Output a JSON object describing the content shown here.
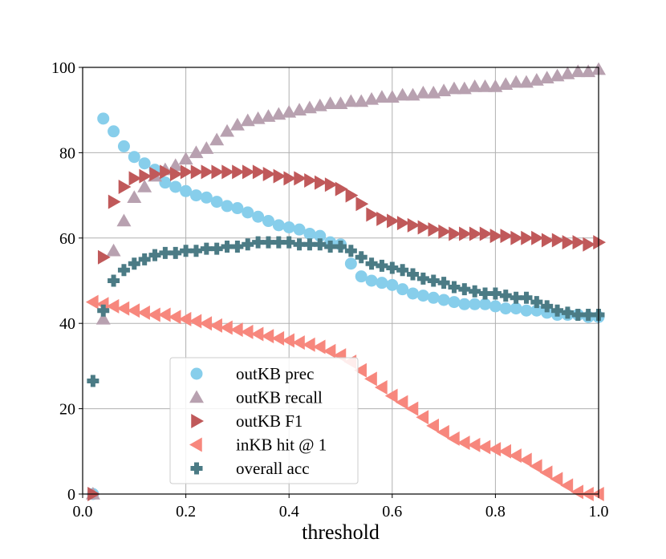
{
  "chart_data": {
    "type": "scatter",
    "title": "",
    "xlabel": "threshold",
    "ylabel": "",
    "xlim": [
      0.0,
      1.0
    ],
    "ylim": [
      0,
      100
    ],
    "xticks": [
      0.0,
      0.2,
      0.4,
      0.6,
      0.8,
      1.0
    ],
    "yticks": [
      0,
      20,
      40,
      60,
      80,
      100
    ],
    "xtick_labels": [
      "0.0",
      "0.2",
      "0.4",
      "0.6",
      "0.8",
      "1.0"
    ],
    "ytick_labels": [
      "0",
      "20",
      "40",
      "60",
      "80",
      "100"
    ],
    "grid": true,
    "legend_position": "lower-center-left",
    "x": [
      0.02,
      0.04,
      0.06,
      0.08,
      0.1,
      0.12,
      0.14,
      0.16,
      0.18,
      0.2,
      0.22,
      0.24,
      0.26,
      0.28,
      0.3,
      0.32,
      0.34,
      0.36,
      0.38,
      0.4,
      0.42,
      0.44,
      0.46,
      0.48,
      0.5,
      0.52,
      0.54,
      0.56,
      0.58,
      0.6,
      0.62,
      0.64,
      0.66,
      0.68,
      0.7,
      0.72,
      0.74,
      0.76,
      0.78,
      0.8,
      0.82,
      0.84,
      0.86,
      0.88,
      0.9,
      0.92,
      0.94,
      0.96,
      0.98,
      1.0
    ],
    "series": [
      {
        "name": "outKB prec",
        "marker": "circle",
        "color": "#87ceeb",
        "values": [
          0,
          88,
          85,
          81.5,
          79,
          77.5,
          76,
          73,
          72,
          71,
          70,
          69.5,
          68.5,
          67.5,
          67,
          66,
          65,
          64,
          63,
          62.5,
          62,
          61,
          60.5,
          59,
          58.5,
          54,
          51,
          50,
          49.5,
          49,
          48,
          47,
          46.5,
          46,
          45.5,
          45,
          44.5,
          44.5,
          44.5,
          44,
          43.5,
          43.5,
          43,
          43,
          42.5,
          42,
          42,
          42,
          41.5,
          41.5
        ]
      },
      {
        "name": "outKB recall",
        "marker": "triangle-up",
        "color": "#b8a1b0",
        "values": [
          0,
          41,
          57,
          64,
          69.5,
          72,
          74.5,
          76,
          77,
          78.5,
          80,
          81,
          83,
          85,
          86.5,
          87.5,
          88,
          88.5,
          89,
          89.5,
          90,
          90.5,
          91,
          91.5,
          91.5,
          92,
          92,
          92.5,
          93,
          93,
          93.5,
          93.5,
          94,
          94,
          94.5,
          95,
          95,
          95.5,
          95.5,
          95.5,
          96,
          96.5,
          96.5,
          97,
          97.5,
          98,
          98.5,
          99,
          99,
          99.5
        ]
      },
      {
        "name": "outKB F1",
        "marker": "triangle-right",
        "color": "#c0595a",
        "values": [
          0,
          55.5,
          68.5,
          72,
          74,
          74.5,
          75,
          75.5,
          75,
          75.5,
          75.5,
          75.5,
          75.5,
          75.5,
          75.5,
          75.5,
          75.5,
          75,
          74.5,
          74,
          74,
          73.5,
          73,
          72.5,
          71.5,
          70,
          68,
          65.5,
          64.5,
          64,
          63.5,
          63,
          62.5,
          62,
          61.5,
          61,
          61,
          61,
          61,
          60.5,
          60.5,
          60,
          60,
          60,
          59.5,
          59.5,
          59,
          59,
          58.5,
          59
        ]
      },
      {
        "name": "inKB hit @ 1",
        "marker": "triangle-left",
        "color": "#f7877d",
        "values": [
          45,
          44.5,
          44,
          43.5,
          43,
          42.5,
          42,
          42,
          41.5,
          41,
          40.5,
          40,
          39.5,
          39,
          38.5,
          38,
          37.5,
          37,
          36.5,
          36,
          35.5,
          35,
          34.5,
          33.5,
          32.5,
          31,
          29,
          27,
          25,
          23,
          21.5,
          20,
          18,
          16,
          14.5,
          13,
          12,
          11.5,
          11,
          10.5,
          10,
          9,
          8,
          6.5,
          5,
          3.5,
          2,
          0.5,
          0,
          0
        ]
      },
      {
        "name": "overall acc",
        "marker": "plus",
        "color": "#4b7b85",
        "values": [
          26.5,
          43,
          50,
          52.5,
          54,
          55,
          56,
          56.5,
          56.5,
          57,
          57,
          57.5,
          57.5,
          58,
          58,
          58.5,
          59,
          59,
          59,
          59,
          58.5,
          58.5,
          58.5,
          58,
          58,
          57,
          55.5,
          54,
          53.5,
          53,
          52.5,
          51.5,
          50.5,
          50,
          49.5,
          48.5,
          48,
          47.5,
          47,
          47,
          46.5,
          46,
          46,
          45,
          44,
          43,
          42.5,
          42,
          42,
          42
        ]
      }
    ]
  }
}
